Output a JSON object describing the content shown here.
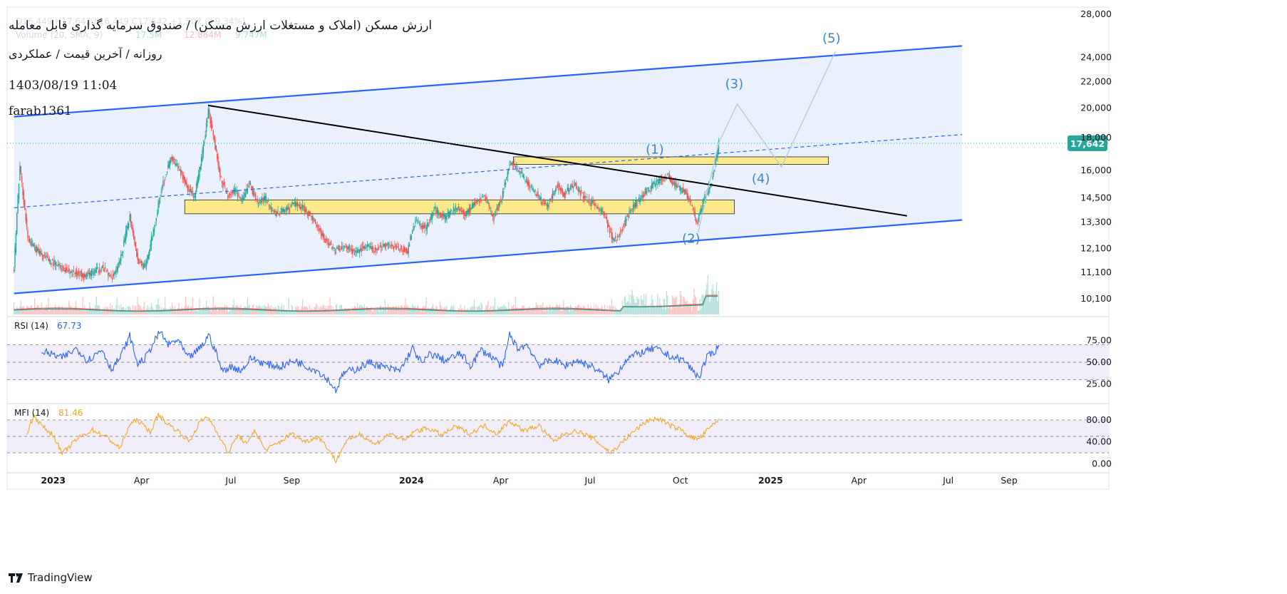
{
  "header": {
    "title": "ارزش مسکن (املاک و مستغلات ارزش مسکن) / صندوق سرمایه گذاری قابل معامله",
    "subtitle": "روزانه / آخرین قیمت / عملکردی",
    "datetime": "1403/08/19 11:04",
    "author": "farab1361",
    "faded_ohlc": "O16,449 H17,642 L16,449 C17,642 +1,507 (+9.34%)",
    "volume_label": "Volume (20, SMA, 9)",
    "volume_values": [
      "17.5M",
      "12.864M",
      "9.747M"
    ]
  },
  "brand": {
    "name": "TradingView"
  },
  "colors": {
    "channel_line": "#2962ff",
    "channel_fill": "#e8eefb",
    "trendline": "#000000",
    "zone_fill": "#fbe98b",
    "zone_border": "#222222",
    "wave_label": "#3d86c6",
    "up_candle": "#26a69a",
    "down_candle": "#ef5350",
    "rsi_line": "#2962ff",
    "mfi_line": "#f5a623",
    "osc_band": "#ede7f6",
    "price_label_bg": "#26a69a"
  },
  "chart_data": [
    {
      "type": "candlestick",
      "name": "price",
      "y_scale": "log",
      "ylim": [
        9700,
        28600
      ],
      "xlim": [
        "2022-11-15",
        "2025-11-01"
      ],
      "y_ticks": [
        "28,000",
        "24,000",
        "22,000",
        "20,000",
        "18,000",
        "16,000",
        "14,500",
        "13,300",
        "12,100",
        "11,100",
        "10,100"
      ],
      "y_tick_values": [
        28000,
        24000,
        22000,
        20000,
        18000,
        16000,
        14500,
        13300,
        12100,
        11100,
        10100
      ],
      "x_ticks": [
        "2023",
        "Apr",
        "Jul",
        "Sep",
        "2024",
        "Apr",
        "Jul",
        "Oct",
        "2025",
        "Apr",
        "Jul",
        "Sep"
      ],
      "x_tick_dates": [
        "2023-01-01",
        "2023-04-01",
        "2023-07-01",
        "2023-09-01",
        "2024-01-01",
        "2024-04-01",
        "2024-07-01",
        "2024-10-01",
        "2025-01-01",
        "2025-04-01",
        "2025-07-01",
        "2025-09-01"
      ],
      "bold_x_ticks": [
        "2023",
        "2024",
        "2025"
      ],
      "last_price": "17,642",
      "last_price_value": 17642,
      "close_anchors": [
        [
          "2022-11-22",
          11200
        ],
        [
          "2022-11-28",
          16200
        ],
        [
          "2022-12-02",
          14300
        ],
        [
          "2022-12-06",
          12500
        ],
        [
          "2022-12-20",
          11800
        ],
        [
          "2023-01-05",
          11400
        ],
        [
          "2023-01-20",
          11100
        ],
        [
          "2023-02-05",
          11000
        ],
        [
          "2023-02-20",
          11300
        ],
        [
          "2023-03-01",
          10900
        ],
        [
          "2023-03-10",
          11500
        ],
        [
          "2023-03-20",
          13600
        ],
        [
          "2023-03-28",
          11600
        ],
        [
          "2023-04-05",
          11300
        ],
        [
          "2023-04-15",
          13300
        ],
        [
          "2023-04-22",
          15200
        ],
        [
          "2023-05-01",
          16700
        ],
        [
          "2023-05-10",
          16000
        ],
        [
          "2023-05-18",
          15000
        ],
        [
          "2023-05-25",
          14500
        ],
        [
          "2023-06-02",
          17000
        ],
        [
          "2023-06-08",
          19800
        ],
        [
          "2023-06-13",
          18200
        ],
        [
          "2023-06-20",
          15600
        ],
        [
          "2023-06-28",
          14600
        ],
        [
          "2023-07-05",
          14900
        ],
        [
          "2023-07-12",
          14300
        ],
        [
          "2023-07-20",
          15300
        ],
        [
          "2023-07-28",
          14200
        ],
        [
          "2023-08-05",
          14500
        ],
        [
          "2023-08-15",
          13700
        ],
        [
          "2023-08-25",
          13900
        ],
        [
          "2023-09-05",
          14200
        ],
        [
          "2023-09-15",
          13900
        ],
        [
          "2023-09-25",
          13300
        ],
        [
          "2023-10-05",
          12500
        ],
        [
          "2023-10-15",
          12000
        ],
        [
          "2023-10-25",
          12200
        ],
        [
          "2023-11-05",
          11900
        ],
        [
          "2023-11-15",
          12200
        ],
        [
          "2023-11-25",
          12000
        ],
        [
          "2023-12-05",
          12300
        ],
        [
          "2023-12-15",
          12200
        ],
        [
          "2023-12-28",
          12000
        ],
        [
          "2024-01-05",
          13400
        ],
        [
          "2024-01-15",
          13000
        ],
        [
          "2024-01-25",
          13900
        ],
        [
          "2024-02-05",
          13500
        ],
        [
          "2024-02-15",
          14000
        ],
        [
          "2024-02-25",
          13700
        ],
        [
          "2024-03-05",
          14200
        ],
        [
          "2024-03-15",
          14600
        ],
        [
          "2024-03-25",
          13500
        ],
        [
          "2024-04-02",
          14500
        ],
        [
          "2024-04-10",
          16500
        ],
        [
          "2024-04-18",
          16100
        ],
        [
          "2024-04-28",
          15300
        ],
        [
          "2024-05-08",
          14700
        ],
        [
          "2024-05-18",
          14000
        ],
        [
          "2024-05-28",
          15200
        ],
        [
          "2024-06-05",
          14700
        ],
        [
          "2024-06-15",
          15300
        ],
        [
          "2024-06-25",
          14500
        ],
        [
          "2024-07-05",
          14200
        ],
        [
          "2024-07-15",
          13700
        ],
        [
          "2024-07-25",
          12400
        ],
        [
          "2024-08-02",
          12900
        ],
        [
          "2024-08-10",
          13800
        ],
        [
          "2024-08-20",
          14400
        ],
        [
          "2024-08-30",
          15000
        ],
        [
          "2024-09-08",
          15400
        ],
        [
          "2024-09-18",
          15700
        ],
        [
          "2024-09-28",
          15000
        ],
        [
          "2024-10-05",
          14900
        ],
        [
          "2024-10-12",
          14200
        ],
        [
          "2024-10-18",
          13200
        ],
        [
          "2024-10-24",
          14300
        ],
        [
          "2024-11-01",
          15200
        ],
        [
          "2024-11-05",
          16200
        ],
        [
          "2024-11-09",
          17642
        ]
      ],
      "overlays": {
        "channel_upper": [
          [
            "2022-11-22",
            19400
          ],
          [
            "2025-07-15",
            25000
          ]
        ],
        "channel_lower": [
          [
            "2022-11-22",
            10300
          ],
          [
            "2025-07-15",
            13400
          ]
        ],
        "channel_mid_dashed": [
          [
            "2022-11-22",
            14000
          ],
          [
            "2025-07-15",
            18200
          ]
        ],
        "trendline": [
          [
            "2023-06-08",
            20200
          ],
          [
            "2025-05-20",
            13600
          ]
        ],
        "zone_upper": {
          "x": [
            "2024-04-14",
            "2025-03-01"
          ],
          "y": [
            16350,
            16800
          ]
        },
        "zone_lower": {
          "x": [
            "2023-05-15",
            "2024-11-25"
          ],
          "y": [
            13700,
            14400
          ]
        },
        "wave_path": [
          [
            "2024-10-19",
            12800
          ],
          [
            "2024-11-09",
            17642
          ],
          [
            "2024-11-28",
            20300
          ],
          [
            "2025-01-12",
            16200
          ],
          [
            "2025-03-08",
            24500
          ]
        ],
        "wave_labels": [
          {
            "text": "(1)",
            "at": [
              "2024-09-05",
              17000
            ]
          },
          {
            "text": "(2)",
            "at": [
              "2024-10-12",
              12350
            ]
          },
          {
            "text": "(3)",
            "at": [
              "2024-11-25",
              21500
            ]
          },
          {
            "text": "(4)",
            "at": [
              "2024-12-22",
              15300
            ]
          },
          {
            "text": "(5)",
            "at": [
              "2025-03-04",
              25300
            ]
          }
        ]
      }
    },
    {
      "type": "line",
      "name": "RSI (14)",
      "value_label": "67.73",
      "ylim": [
        10,
        95
      ],
      "y_ticks": [
        "75.00",
        "50.00",
        "25.00"
      ],
      "y_tick_values": [
        75,
        50,
        25
      ],
      "band": [
        30,
        70
      ],
      "anchors": [
        [
          "2022-12-20",
          63
        ],
        [
          "2023-01-10",
          55
        ],
        [
          "2023-01-25",
          66
        ],
        [
          "2023-02-05",
          52
        ],
        [
          "2023-02-20",
          65
        ],
        [
          "2023-03-01",
          42
        ],
        [
          "2023-03-10",
          55
        ],
        [
          "2023-03-20",
          80
        ],
        [
          "2023-03-28",
          48
        ],
        [
          "2023-04-05",
          55
        ],
        [
          "2023-04-13",
          72
        ],
        [
          "2023-04-20",
          85
        ],
        [
          "2023-04-28",
          70
        ],
        [
          "2023-05-08",
          76
        ],
        [
          "2023-05-18",
          55
        ],
        [
          "2023-05-25",
          60
        ],
        [
          "2023-06-04",
          72
        ],
        [
          "2023-06-08",
          82
        ],
        [
          "2023-06-15",
          64
        ],
        [
          "2023-06-22",
          40
        ],
        [
          "2023-07-01",
          45
        ],
        [
          "2023-07-12",
          41
        ],
        [
          "2023-07-22",
          55
        ],
        [
          "2023-08-05",
          48
        ],
        [
          "2023-08-20",
          45
        ],
        [
          "2023-09-05",
          52
        ],
        [
          "2023-09-15",
          46
        ],
        [
          "2023-09-28",
          40
        ],
        [
          "2023-10-08",
          30
        ],
        [
          "2023-10-16",
          18
        ],
        [
          "2023-10-24",
          38
        ],
        [
          "2023-11-05",
          42
        ],
        [
          "2023-11-20",
          50
        ],
        [
          "2023-12-05",
          44
        ],
        [
          "2023-12-20",
          40
        ],
        [
          "2024-01-02",
          66
        ],
        [
          "2024-01-12",
          48
        ],
        [
          "2024-01-20",
          60
        ],
        [
          "2024-02-05",
          52
        ],
        [
          "2024-02-20",
          60
        ],
        [
          "2024-03-01",
          46
        ],
        [
          "2024-03-12",
          64
        ],
        [
          "2024-03-25",
          55
        ],
        [
          "2024-04-03",
          44
        ],
        [
          "2024-04-10",
          82
        ],
        [
          "2024-04-18",
          66
        ],
        [
          "2024-04-28",
          70
        ],
        [
          "2024-05-10",
          47
        ],
        [
          "2024-05-25",
          53
        ],
        [
          "2024-06-05",
          46
        ],
        [
          "2024-06-18",
          52
        ],
        [
          "2024-07-05",
          44
        ],
        [
          "2024-07-20",
          30
        ],
        [
          "2024-07-30",
          40
        ],
        [
          "2024-08-08",
          55
        ],
        [
          "2024-08-20",
          60
        ],
        [
          "2024-09-05",
          66
        ],
        [
          "2024-09-15",
          60
        ],
        [
          "2024-09-25",
          55
        ],
        [
          "2024-10-05",
          52
        ],
        [
          "2024-10-14",
          40
        ],
        [
          "2024-10-20",
          33
        ],
        [
          "2024-10-28",
          55
        ],
        [
          "2024-11-04",
          62
        ],
        [
          "2024-11-09",
          67.73
        ]
      ]
    },
    {
      "type": "line",
      "name": "MFI (14)",
      "value_label": "81.46",
      "ylim": [
        -2,
        98
      ],
      "y_ticks": [
        "80.00",
        "40.00",
        "0.00"
      ],
      "y_tick_values": [
        80,
        40,
        0
      ],
      "band": [
        20,
        80
      ],
      "anchors": [
        [
          "2022-12-05",
          55
        ],
        [
          "2022-12-12",
          88
        ],
        [
          "2022-12-20",
          70
        ],
        [
          "2023-01-02",
          50
        ],
        [
          "2023-01-10",
          18
        ],
        [
          "2023-01-25",
          45
        ],
        [
          "2023-02-10",
          62
        ],
        [
          "2023-02-25",
          48
        ],
        [
          "2023-03-10",
          28
        ],
        [
          "2023-03-20",
          72
        ],
        [
          "2023-03-28",
          80
        ],
        [
          "2023-04-10",
          58
        ],
        [
          "2023-04-18",
          90
        ],
        [
          "2023-04-28",
          72
        ],
        [
          "2023-05-08",
          60
        ],
        [
          "2023-05-20",
          40
        ],
        [
          "2023-05-30",
          76
        ],
        [
          "2023-06-08",
          85
        ],
        [
          "2023-06-18",
          55
        ],
        [
          "2023-06-28",
          20
        ],
        [
          "2023-07-08",
          52
        ],
        [
          "2023-07-18",
          35
        ],
        [
          "2023-07-25",
          62
        ],
        [
          "2023-08-05",
          25
        ],
        [
          "2023-08-20",
          40
        ],
        [
          "2023-09-01",
          55
        ],
        [
          "2023-09-15",
          40
        ],
        [
          "2023-09-28",
          50
        ],
        [
          "2023-10-08",
          28
        ],
        [
          "2023-10-16",
          5
        ],
        [
          "2023-10-26",
          40
        ],
        [
          "2023-11-10",
          55
        ],
        [
          "2023-11-25",
          35
        ],
        [
          "2023-12-10",
          55
        ],
        [
          "2023-12-25",
          42
        ],
        [
          "2024-01-05",
          60
        ],
        [
          "2024-01-18",
          65
        ],
        [
          "2024-02-01",
          52
        ],
        [
          "2024-02-15",
          68
        ],
        [
          "2024-03-01",
          55
        ],
        [
          "2024-03-15",
          70
        ],
        [
          "2024-03-28",
          55
        ],
        [
          "2024-04-10",
          78
        ],
        [
          "2024-04-25",
          60
        ],
        [
          "2024-05-10",
          70
        ],
        [
          "2024-05-25",
          40
        ],
        [
          "2024-06-05",
          55
        ],
        [
          "2024-06-18",
          60
        ],
        [
          "2024-07-05",
          45
        ],
        [
          "2024-07-22",
          20
        ],
        [
          "2024-08-02",
          38
        ],
        [
          "2024-08-15",
          60
        ],
        [
          "2024-08-30",
          80
        ],
        [
          "2024-09-10",
          82
        ],
        [
          "2024-09-20",
          70
        ],
        [
          "2024-10-02",
          62
        ],
        [
          "2024-10-12",
          48
        ],
        [
          "2024-10-20",
          45
        ],
        [
          "2024-10-28",
          60
        ],
        [
          "2024-11-04",
          72
        ],
        [
          "2024-11-09",
          81.46
        ]
      ]
    }
  ]
}
